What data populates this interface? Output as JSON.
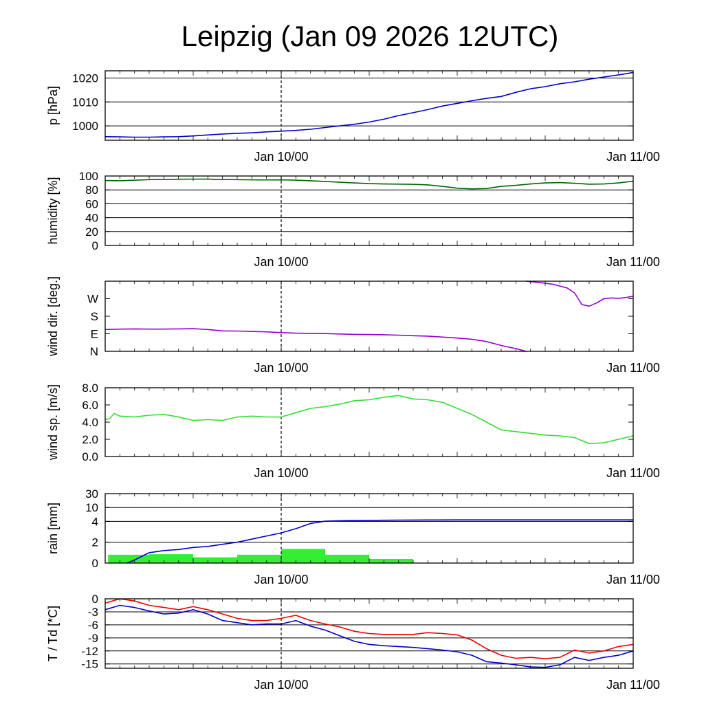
{
  "title": "Leipzig (Jan 09 2026 12UTC)",
  "colors": {
    "pressure": "#0000cc",
    "humidity": "#006400",
    "wind_dir": "#9400d3",
    "wind_speed": "#33dd33",
    "rain_cum": "#0000cc",
    "rain_bar": "#33ee33",
    "temperature": "#ee0000",
    "dewpoint": "#0000cc"
  },
  "chart_data": [
    {
      "type": "line",
      "ylabel": "p [hPa]",
      "ylim": [
        994,
        1023
      ],
      "grid": [
        1000,
        1010,
        1020
      ],
      "ticks": [
        {
          "v": 1020,
          "label": "1020"
        },
        {
          "v": 1010,
          "label": "1010"
        },
        {
          "v": 1000,
          "label": "1000"
        }
      ],
      "xlim": [
        0,
        36
      ],
      "vline": 12,
      "xticks": [
        {
          "v": 12,
          "label": "Jan 10/00"
        },
        {
          "v": 36,
          "label": "Jan 11/00"
        }
      ],
      "series": [
        {
          "name": "pressure",
          "color_key": "pressure",
          "x": [
            0,
            1,
            2,
            3,
            4,
            5,
            6,
            7,
            8,
            9,
            10,
            11,
            12,
            13,
            14,
            15,
            16,
            17,
            18,
            19,
            20,
            21,
            22,
            23,
            24,
            25,
            26,
            27,
            28,
            29,
            30,
            31,
            32,
            33,
            34,
            35,
            36
          ],
          "values": [
            995.5,
            995.4,
            995.3,
            995.3,
            995.4,
            995.5,
            995.8,
            996.2,
            996.6,
            996.9,
            997.1,
            997.5,
            997.8,
            998.1,
            998.6,
            999.3,
            1000.0,
            1000.7,
            1001.6,
            1002.8,
            1004.3,
            1005.5,
            1006.8,
            1008.3,
            1009.4,
            1010.5,
            1011.5,
            1012.3,
            1014.0,
            1015.5,
            1016.4,
            1017.6,
            1018.4,
            1019.5,
            1020.4,
            1021.3,
            1022.3
          ]
        }
      ]
    },
    {
      "type": "line",
      "ylabel": "humidity [%]",
      "ylim": [
        0,
        100
      ],
      "grid": [
        20,
        40,
        60,
        80,
        100
      ],
      "ticks": [
        {
          "v": 100,
          "label": "100"
        },
        {
          "v": 80,
          "label": "80"
        },
        {
          "v": 60,
          "label": "60"
        },
        {
          "v": 40,
          "label": "40"
        },
        {
          "v": 20,
          "label": "20"
        },
        {
          "v": 0,
          "label": "0"
        }
      ],
      "xlim": [
        0,
        36
      ],
      "vline": 12,
      "xticks": [
        {
          "v": 12,
          "label": "Jan 10/00"
        },
        {
          "v": 36,
          "label": "Jan 11/00"
        }
      ],
      "series": [
        {
          "name": "humidity",
          "color_key": "humidity",
          "x": [
            0,
            1,
            2,
            3,
            4,
            5,
            6,
            7,
            8,
            9,
            10,
            11,
            12,
            13,
            14,
            15,
            16,
            17,
            18,
            19,
            20,
            21,
            22,
            23,
            24,
            25,
            26,
            27,
            28,
            29,
            30,
            31,
            32,
            33,
            34,
            35,
            36
          ],
          "values": [
            93.5,
            93.2,
            94.0,
            94.8,
            95.0,
            95.3,
            95.5,
            95.4,
            95.0,
            94.8,
            94.5,
            94.4,
            94.5,
            94.0,
            93.2,
            92.2,
            91.0,
            90.0,
            89.0,
            88.5,
            88.3,
            88.0,
            87.2,
            85.0,
            82.5,
            81.5,
            82.0,
            85.0,
            86.5,
            88.5,
            90.0,
            90.5,
            89.5,
            88.2,
            88.5,
            90.0,
            92.5
          ]
        }
      ]
    },
    {
      "type": "line",
      "ylabel": "wind dir. [deg.]",
      "ylim": [
        0,
        360
      ],
      "grid": [],
      "ticks": [
        {
          "v": 270,
          "label": "W"
        },
        {
          "v": 180,
          "label": "S"
        },
        {
          "v": 90,
          "label": "E"
        },
        {
          "v": 0,
          "label": "N"
        }
      ],
      "xlim": [
        0,
        36
      ],
      "vline": 12,
      "xticks": [
        {
          "v": 12,
          "label": "Jan 10/00"
        },
        {
          "v": 36,
          "label": "Jan 11/00"
        }
      ],
      "series": [
        {
          "name": "wind direction (early)",
          "color_key": "wind_dir",
          "x": [
            0,
            1,
            2,
            3,
            4,
            5,
            6,
            7,
            8,
            9,
            10,
            11,
            12,
            13,
            14,
            15,
            16,
            17,
            18,
            19,
            20,
            21,
            22,
            23,
            24,
            25,
            26,
            27,
            28,
            28.7
          ],
          "values": [
            112,
            114,
            115,
            114,
            114,
            115,
            116,
            112,
            105,
            104,
            102,
            100,
            96,
            93,
            92,
            91,
            89,
            87,
            86,
            85,
            83,
            80,
            78,
            73,
            68,
            62,
            50,
            30,
            14,
            0
          ]
        },
        {
          "name": "wind direction (late)",
          "color_key": "wind_dir",
          "x": [
            28.7,
            29.5,
            30.5,
            31.5,
            32.0,
            32.5,
            33.0,
            33.5,
            34.0,
            34.5,
            35.0,
            35.5,
            36.0
          ],
          "values": [
            360,
            354,
            345,
            325,
            300,
            240,
            232,
            248,
            270,
            274,
            272,
            276,
            283
          ]
        }
      ]
    },
    {
      "type": "line",
      "ylabel": "wind sp. [m/s]",
      "ylim": [
        0,
        8
      ],
      "grid": [],
      "ticks": [
        {
          "v": 8,
          "label": "8.0"
        },
        {
          "v": 6,
          "label": "6.0"
        },
        {
          "v": 4,
          "label": "4.0"
        },
        {
          "v": 2,
          "label": "2.0"
        },
        {
          "v": 0,
          "label": "0.0"
        }
      ],
      "xlim": [
        0,
        36
      ],
      "vline": 12,
      "xticks": [
        {
          "v": 12,
          "label": "Jan 10/00"
        },
        {
          "v": 36,
          "label": "Jan 11/00"
        }
      ],
      "series": [
        {
          "name": "wind speed",
          "color_key": "wind_speed",
          "x": [
            0,
            0.3,
            0.6,
            1,
            2,
            3,
            4,
            5,
            6,
            7,
            8,
            9,
            10,
            11,
            12,
            13,
            14,
            15,
            16,
            17,
            18,
            19,
            20,
            21,
            22,
            23,
            24,
            25,
            26,
            27,
            28,
            29,
            30,
            31,
            32,
            33,
            34,
            35,
            36
          ],
          "values": [
            4.3,
            4.4,
            5.0,
            4.7,
            4.6,
            4.8,
            4.9,
            4.6,
            4.2,
            4.3,
            4.2,
            4.6,
            4.7,
            4.6,
            4.6,
            5.1,
            5.6,
            5.8,
            6.1,
            6.5,
            6.6,
            6.9,
            7.1,
            6.7,
            6.6,
            6.3,
            5.6,
            4.9,
            4.0,
            3.1,
            2.9,
            2.7,
            2.5,
            2.4,
            2.2,
            1.5,
            1.6,
            2.0,
            2.4
          ]
        }
      ]
    },
    {
      "type": "bar+line",
      "ylabel": "rain [mm]",
      "scale": "pseudo-log",
      "ylim": [
        0,
        30
      ],
      "grid": [
        2,
        4,
        10,
        30
      ],
      "ticks": [
        {
          "v": 30,
          "label": "30"
        },
        {
          "v": 10,
          "label": "10"
        },
        {
          "v": 4,
          "label": "4"
        },
        {
          "v": 2,
          "label": "2"
        },
        {
          "v": 0,
          "label": "0"
        }
      ],
      "xlim": [
        0,
        36
      ],
      "vline": 12,
      "xticks": [
        {
          "v": 12,
          "label": "Jan 10/00"
        },
        {
          "v": 36,
          "label": "Jan 11/00"
        }
      ],
      "bars": {
        "name": "rain per 3h",
        "color_key": "rain_bar",
        "bins": [
          [
            0.2,
            3
          ],
          [
            3,
            6
          ],
          [
            6,
            9
          ],
          [
            9,
            12
          ],
          [
            12,
            15
          ],
          [
            15,
            18
          ],
          [
            18,
            21
          ],
          [
            21,
            24
          ]
        ],
        "values": [
          0.8,
          0.85,
          0.55,
          0.8,
          1.35,
          0.8,
          0.4,
          0.0
        ]
      },
      "series": [
        {
          "name": "cumulative rain",
          "color_key": "rain_cum",
          "x": [
            1.5,
            2,
            3,
            4,
            5,
            6,
            7,
            8,
            9,
            10,
            11,
            12,
            13,
            14,
            15,
            16,
            17,
            18,
            19,
            20,
            21,
            22,
            24,
            28,
            32,
            36
          ],
          "values": [
            0.0,
            0.3,
            1.0,
            1.2,
            1.3,
            1.5,
            1.6,
            1.8,
            2.0,
            2.3,
            2.6,
            2.9,
            3.3,
            3.8,
            4.1,
            4.3,
            4.4,
            4.45,
            4.5,
            4.55,
            4.6,
            4.62,
            4.65,
            4.65,
            4.65,
            4.65
          ]
        }
      ]
    },
    {
      "type": "line",
      "ylabel": "T / Td [*C]",
      "ylim": [
        -16,
        0
      ],
      "grid": [
        -3,
        -6,
        -9,
        -12,
        -15
      ],
      "ticks": [
        {
          "v": 0,
          "label": "0"
        },
        {
          "v": -3,
          "label": "-3"
        },
        {
          "v": -6,
          "label": "-6"
        },
        {
          "v": -9,
          "label": "-9"
        },
        {
          "v": -12,
          "label": "-12"
        },
        {
          "v": -15,
          "label": "-15"
        }
      ],
      "xlim": [
        0,
        36
      ],
      "vline": 12,
      "xticks": [
        {
          "v": 12,
          "label": "Jan 10/00"
        },
        {
          "v": 36,
          "label": "Jan 11/00"
        }
      ],
      "series": [
        {
          "name": "temperature",
          "color_key": "temperature",
          "x": [
            0,
            1,
            2,
            3,
            4,
            5,
            6,
            7,
            8,
            9,
            10,
            11,
            12,
            13,
            14,
            15,
            16,
            17,
            18,
            19,
            20,
            21,
            22,
            23,
            24,
            25,
            26,
            27,
            28,
            29,
            30,
            31,
            32,
            33,
            34,
            35,
            36
          ],
          "values": [
            -1.0,
            0.0,
            -0.5,
            -1.5,
            -2.0,
            -2.5,
            -1.8,
            -2.5,
            -3.5,
            -4.5,
            -5.0,
            -5.0,
            -4.5,
            -3.8,
            -5.0,
            -5.8,
            -6.5,
            -7.5,
            -8.0,
            -8.2,
            -8.2,
            -8.2,
            -7.8,
            -8.0,
            -8.3,
            -9.5,
            -11.5,
            -13.0,
            -13.7,
            -13.5,
            -13.8,
            -13.5,
            -11.8,
            -12.5,
            -12.0,
            -11.0,
            -10.5
          ]
        },
        {
          "name": "dew point",
          "color_key": "dewpoint",
          "x": [
            0,
            1,
            2,
            3,
            4,
            5,
            6,
            7,
            8,
            9,
            10,
            11,
            12,
            13,
            14,
            15,
            16,
            17,
            18,
            19,
            20,
            21,
            22,
            23,
            24,
            25,
            26,
            27,
            28,
            29,
            30,
            31,
            32,
            33,
            34,
            35,
            36
          ],
          "values": [
            -2.5,
            -1.5,
            -2.0,
            -2.8,
            -3.5,
            -3.3,
            -2.5,
            -3.5,
            -5.0,
            -5.5,
            -6.0,
            -5.8,
            -5.8,
            -5.0,
            -6.3,
            -7.2,
            -8.5,
            -9.8,
            -10.5,
            -10.8,
            -11.0,
            -11.2,
            -11.5,
            -11.8,
            -12.2,
            -13.0,
            -14.5,
            -14.8,
            -15.2,
            -15.7,
            -15.8,
            -15.2,
            -13.5,
            -14.2,
            -13.5,
            -13.0,
            -12.0
          ]
        }
      ]
    }
  ]
}
